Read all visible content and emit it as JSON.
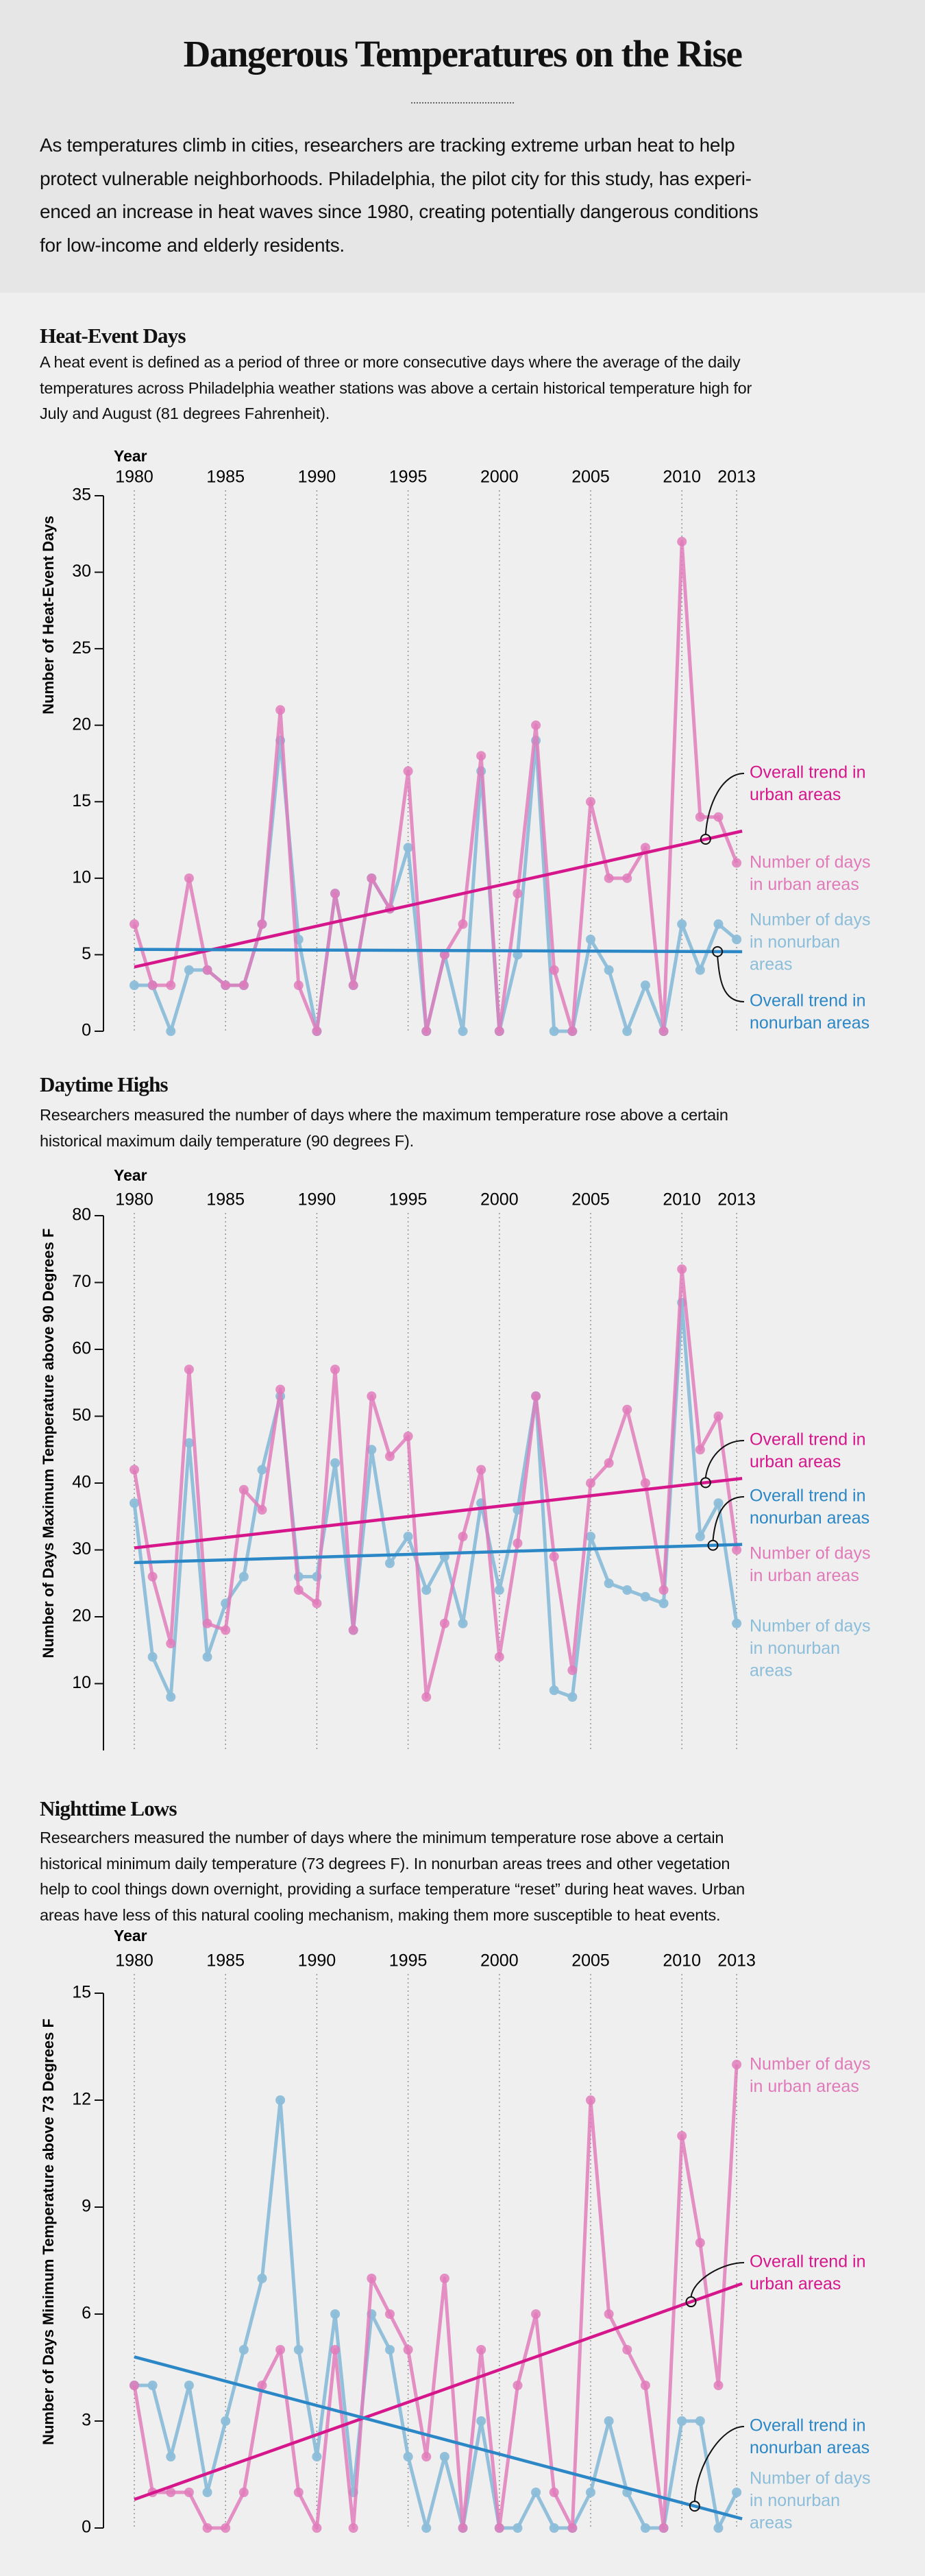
{
  "header": {
    "title": "Dangerous Temperatures on the Rise",
    "intro_lines": [
      "As temperatures climb in cities, researchers are tracking extreme urban heat to help",
      "protect vulnerable neighborhoods. Philadelphia, the pilot city for this study, has experi-",
      "enced an increase in heat waves since 1980, creating potentially dangerous conditions",
      "for low-income and elderly residents."
    ]
  },
  "sections": [
    {
      "title": "Heat-Event Days",
      "desc_lines": [
        "A heat event is defined as a period of three or more consecutive days where the average of the daily",
        "temperatures across Philadelphia weather stations was above a certain historical temperature high for",
        "July and August (81 degrees Fahrenheit)."
      ]
    },
    {
      "title": "Daytime Highs",
      "desc_lines": [
        "Researchers measured the number of days where the maximum temperature rose above a certain",
        "historical maximum daily temperature (90 degrees F)."
      ]
    },
    {
      "title": "Nighttime Lows",
      "desc_lines": [
        "Researchers measured the number of days where the minimum temperature rose above a certain",
        "historical minimum daily temperature (73 degrees F). In nonurban areas trees and other vegetation",
        "help to cool things down overnight, providing a surface temperature “reset” during heat waves. Urban",
        "areas have less of this natural cooling mechanism, making them more susceptible to heat events."
      ]
    }
  ],
  "colors": {
    "urban": "#e17ab9",
    "nonurban": "#8cbdd9",
    "urban_trend": "#d6178c",
    "nonurban_trend": "#2b87c5",
    "header_bg": "#e6e6e6",
    "page_bg": "#efefef"
  },
  "chart_data": [
    {
      "type": "line",
      "xlabel": "Year",
      "ylabel": "Number of Heat-Event Days",
      "x_ticks": [
        1980,
        1985,
        1990,
        1995,
        2000,
        2005,
        2010,
        2013
      ],
      "y_ticks": [
        0,
        5,
        10,
        15,
        20,
        25,
        30,
        35
      ],
      "ylim": [
        0,
        35
      ],
      "xlim": [
        1980,
        2013
      ],
      "grid": "vertical dotted lines at year ticks",
      "years_start": 1980,
      "series": [
        {
          "name": "Number of days in urban areas",
          "label_lines": [
            "Number of days",
            "in urban areas"
          ],
          "color": "#e17ab9",
          "values": [
            7,
            3,
            3,
            10,
            4,
            3,
            3,
            7,
            21,
            3,
            0,
            9,
            3,
            10,
            8,
            17,
            0,
            5,
            7,
            18,
            0,
            9,
            20,
            4,
            0,
            15,
            10,
            10,
            12,
            0,
            32,
            14,
            14,
            11
          ]
        },
        {
          "name": "Number of days in nonurban areas",
          "label_lines": [
            "Number of days",
            "in nonurban",
            "areas"
          ],
          "color": "#8cbdd9",
          "values": [
            3,
            3,
            0,
            4,
            4,
            3,
            3,
            7,
            19,
            6,
            0,
            9,
            3,
            10,
            8,
            12,
            0,
            5,
            0,
            17,
            0,
            5,
            19,
            0,
            0,
            6,
            4,
            0,
            3,
            0,
            7,
            4,
            7,
            6
          ]
        }
      ],
      "trends": [
        {
          "name": "Overall trend in urban areas",
          "label_lines": [
            "Overall trend in",
            "urban areas"
          ],
          "color": "#d6178c",
          "start": [
            1980,
            4.2
          ],
          "end": [
            2013,
            13.0
          ]
        },
        {
          "name": "Overall trend in nonurban areas",
          "label_lines": [
            "Overall trend in",
            "nonurban areas"
          ],
          "color": "#2b87c5",
          "start": [
            1980,
            5.35
          ],
          "end": [
            2013,
            5.2
          ]
        }
      ]
    },
    {
      "type": "line",
      "xlabel": "Year",
      "ylabel": "Number of Days Maximum Temperature above 90 Degrees F",
      "x_ticks": [
        1980,
        1985,
        1990,
        1995,
        2000,
        2005,
        2010,
        2013
      ],
      "y_ticks": [
        10,
        20,
        30,
        40,
        50,
        60,
        70,
        80
      ],
      "ylim": [
        0,
        80
      ],
      "xlim": [
        1980,
        2013
      ],
      "grid": "vertical dotted lines at year ticks",
      "years_start": 1980,
      "series": [
        {
          "name": "Number of days in urban areas",
          "label_lines": [
            "Number of days",
            "in urban areas"
          ],
          "color": "#e17ab9",
          "values": [
            42,
            26,
            16,
            57,
            19,
            18,
            39,
            36,
            54,
            24,
            22,
            57,
            18,
            53,
            44,
            47,
            8,
            19,
            32,
            42,
            14,
            31,
            53,
            29,
            12,
            40,
            43,
            51,
            40,
            24,
            72,
            45,
            50,
            30
          ]
        },
        {
          "name": "Number of days in nonurban areas",
          "label_lines": [
            "Number of days",
            "in nonurban",
            "areas"
          ],
          "color": "#8cbdd9",
          "values": [
            37,
            14,
            8,
            46,
            14,
            22,
            26,
            42,
            53,
            26,
            26,
            43,
            18,
            45,
            28,
            32,
            24,
            29,
            19,
            37,
            24,
            36,
            53,
            9,
            8,
            32,
            25,
            24,
            23,
            22,
            67,
            32,
            37,
            19
          ]
        }
      ],
      "trends": [
        {
          "name": "Overall trend in urban areas",
          "label_lines": [
            "Overall trend in",
            "urban areas"
          ],
          "color": "#d6178c",
          "start": [
            1980,
            30.3
          ],
          "end": [
            2013,
            40.6
          ]
        },
        {
          "name": "Overall trend in nonurban areas",
          "label_lines": [
            "Overall trend in",
            "nonurban areas"
          ],
          "color": "#2b87c5",
          "start": [
            1980,
            28.1
          ],
          "end": [
            2013,
            30.8
          ]
        }
      ]
    },
    {
      "type": "line",
      "xlabel": "Year",
      "ylabel": "Number of Days Minimum Temperature above 73 Degrees F",
      "x_ticks": [
        1980,
        1985,
        1990,
        1995,
        2000,
        2005,
        2010,
        2013
      ],
      "y_ticks": [
        0,
        3,
        6,
        9,
        12,
        15
      ],
      "ylim": [
        0,
        15
      ],
      "xlim": [
        1980,
        2013
      ],
      "grid": "vertical dotted lines at year ticks",
      "years_start": 1980,
      "series": [
        {
          "name": "Number of days in urban areas",
          "label_lines": [
            "Number of days",
            "in urban areas"
          ],
          "color": "#e17ab9",
          "values": [
            4,
            1,
            1,
            1,
            0,
            0,
            1,
            4,
            5,
            1,
            0,
            5,
            0,
            7,
            6,
            5,
            2,
            7,
            0,
            5,
            0,
            4,
            6,
            1,
            0,
            12,
            6,
            5,
            4,
            0,
            11,
            8,
            4,
            13
          ]
        },
        {
          "name": "Number of days in nonurban areas",
          "label_lines": [
            "Number of days",
            "in nonurban",
            "areas"
          ],
          "color": "#8cbdd9",
          "values": [
            4,
            4,
            2,
            4,
            1,
            3,
            5,
            7,
            12,
            5,
            2,
            6,
            1,
            6,
            5,
            2,
            0,
            2,
            0,
            3,
            0,
            0,
            1,
            0,
            0,
            1,
            3,
            1,
            0,
            0,
            3,
            3,
            0,
            1
          ]
        }
      ],
      "trends": [
        {
          "name": "Overall trend in urban areas",
          "label_lines": [
            "Overall trend in",
            "urban areas"
          ],
          "color": "#d6178c",
          "start": [
            1980,
            0.8
          ],
          "end": [
            2013,
            6.8
          ]
        },
        {
          "name": "Overall trend in nonurban areas",
          "label_lines": [
            "Overall trend in",
            "nonurban areas"
          ],
          "color": "#2b87c5",
          "start": [
            1980,
            4.8
          ],
          "end": [
            2013,
            0.3
          ]
        }
      ]
    }
  ]
}
